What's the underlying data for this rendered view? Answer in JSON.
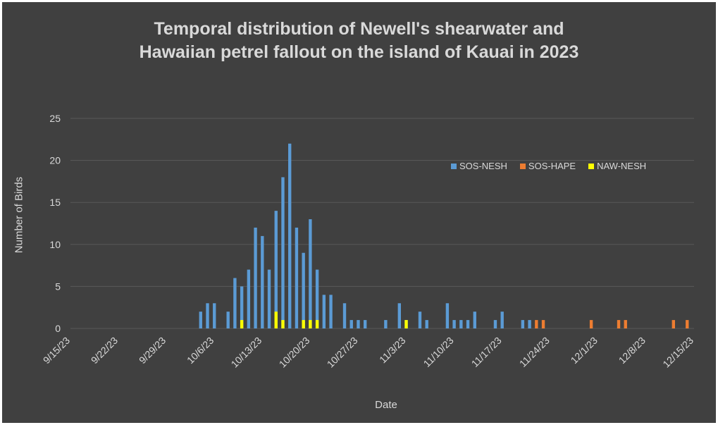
{
  "chart_data": {
    "type": "bar",
    "title_lines": [
      "Temporal distribution of Newell's shearwater and",
      "Hawaiian petrel fallout on the island of Kauai in 2023"
    ],
    "xlabel": "Date",
    "ylabel": "Number of Birds",
    "ylim": [
      0,
      25
    ],
    "yticks": [
      0,
      5,
      10,
      15,
      20,
      25
    ],
    "xlim": [
      "9/15/23",
      "12/15/23"
    ],
    "xticks": [
      "9/15/23",
      "9/22/23",
      "9/29/23",
      "10/6/23",
      "10/13/23",
      "10/20/23",
      "10/27/23",
      "11/3/23",
      "11/10/23",
      "11/17/23",
      "11/24/23",
      "12/1/23",
      "12/8/23",
      "12/15/23"
    ],
    "grid": true,
    "legend_position": "top-right",
    "series": [
      {
        "name": "SOS-NESH",
        "color": "#5b9bd5",
        "points": [
          [
            "10/4/23",
            2
          ],
          [
            "10/5/23",
            3
          ],
          [
            "10/6/23",
            3
          ],
          [
            "10/8/23",
            2
          ],
          [
            "10/9/23",
            6
          ],
          [
            "10/10/23",
            5
          ],
          [
            "10/11/23",
            7
          ],
          [
            "10/12/23",
            12
          ],
          [
            "10/13/23",
            11
          ],
          [
            "10/14/23",
            7
          ],
          [
            "10/15/23",
            14
          ],
          [
            "10/16/23",
            18
          ],
          [
            "10/17/23",
            22
          ],
          [
            "10/18/23",
            12
          ],
          [
            "10/19/23",
            9
          ],
          [
            "10/20/23",
            13
          ],
          [
            "10/21/23",
            7
          ],
          [
            "10/22/23",
            4
          ],
          [
            "10/23/23",
            4
          ],
          [
            "10/25/23",
            3
          ],
          [
            "10/26/23",
            1
          ],
          [
            "10/27/23",
            1
          ],
          [
            "10/28/23",
            1
          ],
          [
            "10/31/23",
            1
          ],
          [
            "11/2/23",
            3
          ],
          [
            "11/3/23",
            1
          ],
          [
            "11/5/23",
            2
          ],
          [
            "11/6/23",
            1
          ],
          [
            "11/9/23",
            3
          ],
          [
            "11/10/23",
            1
          ],
          [
            "11/11/23",
            1
          ],
          [
            "11/12/23",
            1
          ],
          [
            "11/13/23",
            2
          ],
          [
            "11/16/23",
            1
          ],
          [
            "11/17/23",
            2
          ],
          [
            "11/20/23",
            1
          ],
          [
            "11/21/23",
            1
          ]
        ]
      },
      {
        "name": "SOS-HAPE",
        "color": "#ed7d31",
        "points": [
          [
            "11/22/23",
            1
          ],
          [
            "11/23/23",
            1
          ],
          [
            "11/30/23",
            1
          ],
          [
            "12/4/23",
            1
          ],
          [
            "12/5/23",
            1
          ],
          [
            "12/12/23",
            1
          ],
          [
            "12/14/23",
            1
          ]
        ]
      },
      {
        "name": "NAW-NESH",
        "color": "#ffff00",
        "points": [
          [
            "10/10/23",
            1
          ],
          [
            "10/15/23",
            2
          ],
          [
            "10/16/23",
            1
          ],
          [
            "10/19/23",
            1
          ],
          [
            "10/20/23",
            1
          ],
          [
            "10/21/23",
            1
          ],
          [
            "11/3/23",
            1
          ]
        ]
      }
    ],
    "colors": {
      "background": "#404040",
      "text": "#d9d9d9",
      "gridline": "#595959"
    }
  }
}
